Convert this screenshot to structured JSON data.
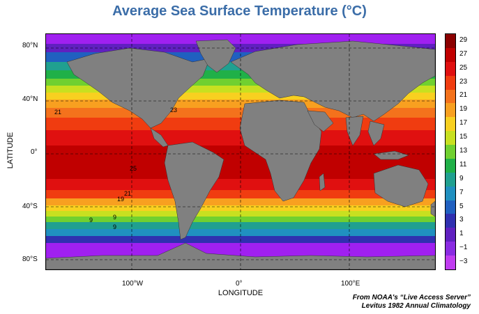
{
  "title": "Average Sea Surface Temperature (°C)",
  "axes": {
    "ylabel": "LATITUDE",
    "xlabel": "LONGITUDE",
    "lat_ticks": [
      "80°N",
      "40°N",
      "0°",
      "40°S",
      "80°S"
    ],
    "lon_ticks": [
      "100°W",
      "0°",
      "100°E"
    ]
  },
  "colorbar": {
    "labels": [
      "29",
      "27",
      "25",
      "23",
      "21",
      "19",
      "17",
      "15",
      "13",
      "11",
      "9",
      "7",
      "5",
      "3",
      "1",
      "−1",
      "−3"
    ],
    "colors": [
      "#8b0000",
      "#c00000",
      "#e01010",
      "#f03c10",
      "#f4721c",
      "#f8a020",
      "#f8d020",
      "#c8e020",
      "#70d030",
      "#20b048",
      "#20a090",
      "#2090c0",
      "#2060c0",
      "#3030b0",
      "#6020c0",
      "#8a2be2",
      "#c03cf0"
    ]
  },
  "contour_labels": [
    "21",
    "23",
    "25",
    "21",
    "19",
    "9",
    "9",
    "9"
  ],
  "credit": {
    "line1": "From NOAA's “Live Access Server”",
    "line2": "Levitus 1982 Annual Climatology"
  }
}
